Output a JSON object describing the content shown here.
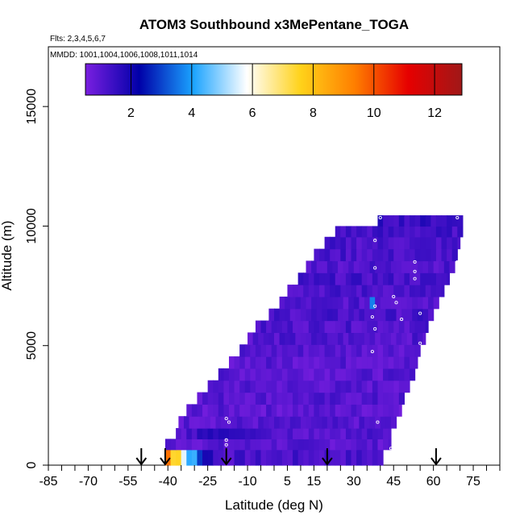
{
  "chart_data": {
    "type": "heatmap",
    "title": "ATOM3 Southbound x3MePentane_TOGA",
    "flights_note": "Flts: 2,3,4,5,6,7",
    "dates_note": "MMDD: 1001,1004,1006,1008,1011,1014",
    "xlabel": "Latitude (deg N)",
    "ylabel": "Altitude (m)",
    "xlim": [
      -85,
      85
    ],
    "ylim": [
      0,
      17500
    ],
    "x_ticks": [
      -85,
      -70,
      -55,
      -40,
      -25,
      -10,
      5,
      15,
      30,
      45,
      60,
      75
    ],
    "y_ticks": [
      0,
      5000,
      10000,
      15000
    ],
    "colorbar": {
      "range": [
        0.5,
        12.9
      ],
      "ticks": [
        2,
        4,
        6,
        8,
        10,
        12
      ],
      "colors": [
        "#7a1fe0",
        "#0000a8",
        "#1aa3ff",
        "#ffffff",
        "#ffd21a",
        "#ff7f00",
        "#e60000",
        "#a01818"
      ]
    },
    "arrows_lat": [
      -50,
      -41,
      -18,
      20,
      61
    ],
    "rows": [
      {
        "alt": 400,
        "latmin": -41,
        "latmax": 41,
        "base": 1.2,
        "segments": [
          [
            -41,
            -38,
            9.5
          ],
          [
            -38,
            -35,
            7.5
          ],
          [
            -35,
            -32,
            5.5
          ],
          [
            -32,
            -29,
            4.2
          ],
          [
            -29,
            -26,
            3.0
          ],
          [
            -26,
            -22,
            2.0
          ]
        ]
      },
      {
        "alt": 900,
        "latmin": -41,
        "latmax": 44,
        "base": 1.0,
        "segments": []
      },
      {
        "alt": 1300,
        "latmin": -37,
        "latmax": 44,
        "base": 1.1,
        "segments": [
          [
            -28,
            -10,
            1.7
          ],
          [
            -10,
            0,
            1.4
          ]
        ]
      },
      {
        "alt": 1800,
        "latmin": -36,
        "latmax": 46,
        "base": 1.0,
        "segments": []
      },
      {
        "alt": 2300,
        "latmin": -33,
        "latmax": 48,
        "base": 0.95,
        "segments": []
      },
      {
        "alt": 2800,
        "latmin": -29,
        "latmax": 49,
        "base": 1.05,
        "segments": []
      },
      {
        "alt": 3300,
        "latmin": -25,
        "latmax": 51,
        "base": 1.0,
        "segments": []
      },
      {
        "alt": 3800,
        "latmin": -21,
        "latmax": 53,
        "base": 1.0,
        "segments": []
      },
      {
        "alt": 4300,
        "latmin": -17,
        "latmax": 54,
        "base": 1.0,
        "segments": []
      },
      {
        "alt": 4800,
        "latmin": -13,
        "latmax": 55,
        "base": 1.05,
        "segments": []
      },
      {
        "alt": 5300,
        "latmin": -10,
        "latmax": 57,
        "base": 1.1,
        "segments": []
      },
      {
        "alt": 5800,
        "latmin": -7,
        "latmax": 58,
        "base": 1.15,
        "segments": []
      },
      {
        "alt": 6300,
        "latmin": -2,
        "latmax": 60,
        "base": 1.2,
        "segments": []
      },
      {
        "alt": 6800,
        "latmin": 2,
        "latmax": 62,
        "base": 1.1,
        "segments": [
          [
            36,
            38,
            3.7
          ],
          [
            38,
            41,
            1.2
          ]
        ]
      },
      {
        "alt": 7300,
        "latmin": 5,
        "latmax": 64,
        "base": 1.2,
        "segments": []
      },
      {
        "alt": 7800,
        "latmin": 9,
        "latmax": 66,
        "base": 1.25,
        "segments": []
      },
      {
        "alt": 8300,
        "latmin": 12,
        "latmax": 68,
        "base": 1.15,
        "segments": []
      },
      {
        "alt": 8800,
        "latmin": 15,
        "latmax": 69,
        "base": 1.2,
        "segments": []
      },
      {
        "alt": 9300,
        "latmin": 19,
        "latmax": 70,
        "base": 1.2,
        "segments": []
      },
      {
        "alt": 9800,
        "latmin": 23,
        "latmax": 71,
        "base": 1.3,
        "segments": []
      },
      {
        "alt": 10200,
        "latmin": 39,
        "latmax": 71,
        "base": 1.5,
        "segments": []
      }
    ],
    "points": [
      [
        40,
        10350
      ],
      [
        69,
        10350
      ],
      [
        38,
        9400
      ],
      [
        69,
        8500
      ],
      [
        53,
        8500
      ],
      [
        38,
        8250
      ],
      [
        53,
        8100
      ],
      [
        53,
        7800
      ],
      [
        71,
        7800
      ],
      [
        45,
        7050
      ],
      [
        46,
        6800
      ],
      [
        38,
        6650
      ],
      [
        55,
        6350
      ],
      [
        37,
        6200
      ],
      [
        48,
        6100
      ],
      [
        38,
        5700
      ],
      [
        55,
        5100
      ],
      [
        37,
        4750
      ],
      [
        56,
        3900
      ],
      [
        39,
        1800
      ],
      [
        -18,
        1950
      ],
      [
        -17,
        1800
      ],
      [
        -18,
        1050
      ],
      [
        -18,
        850
      ],
      [
        44,
        700
      ],
      [
        45,
        600
      ],
      [
        46,
        150
      ]
    ]
  }
}
